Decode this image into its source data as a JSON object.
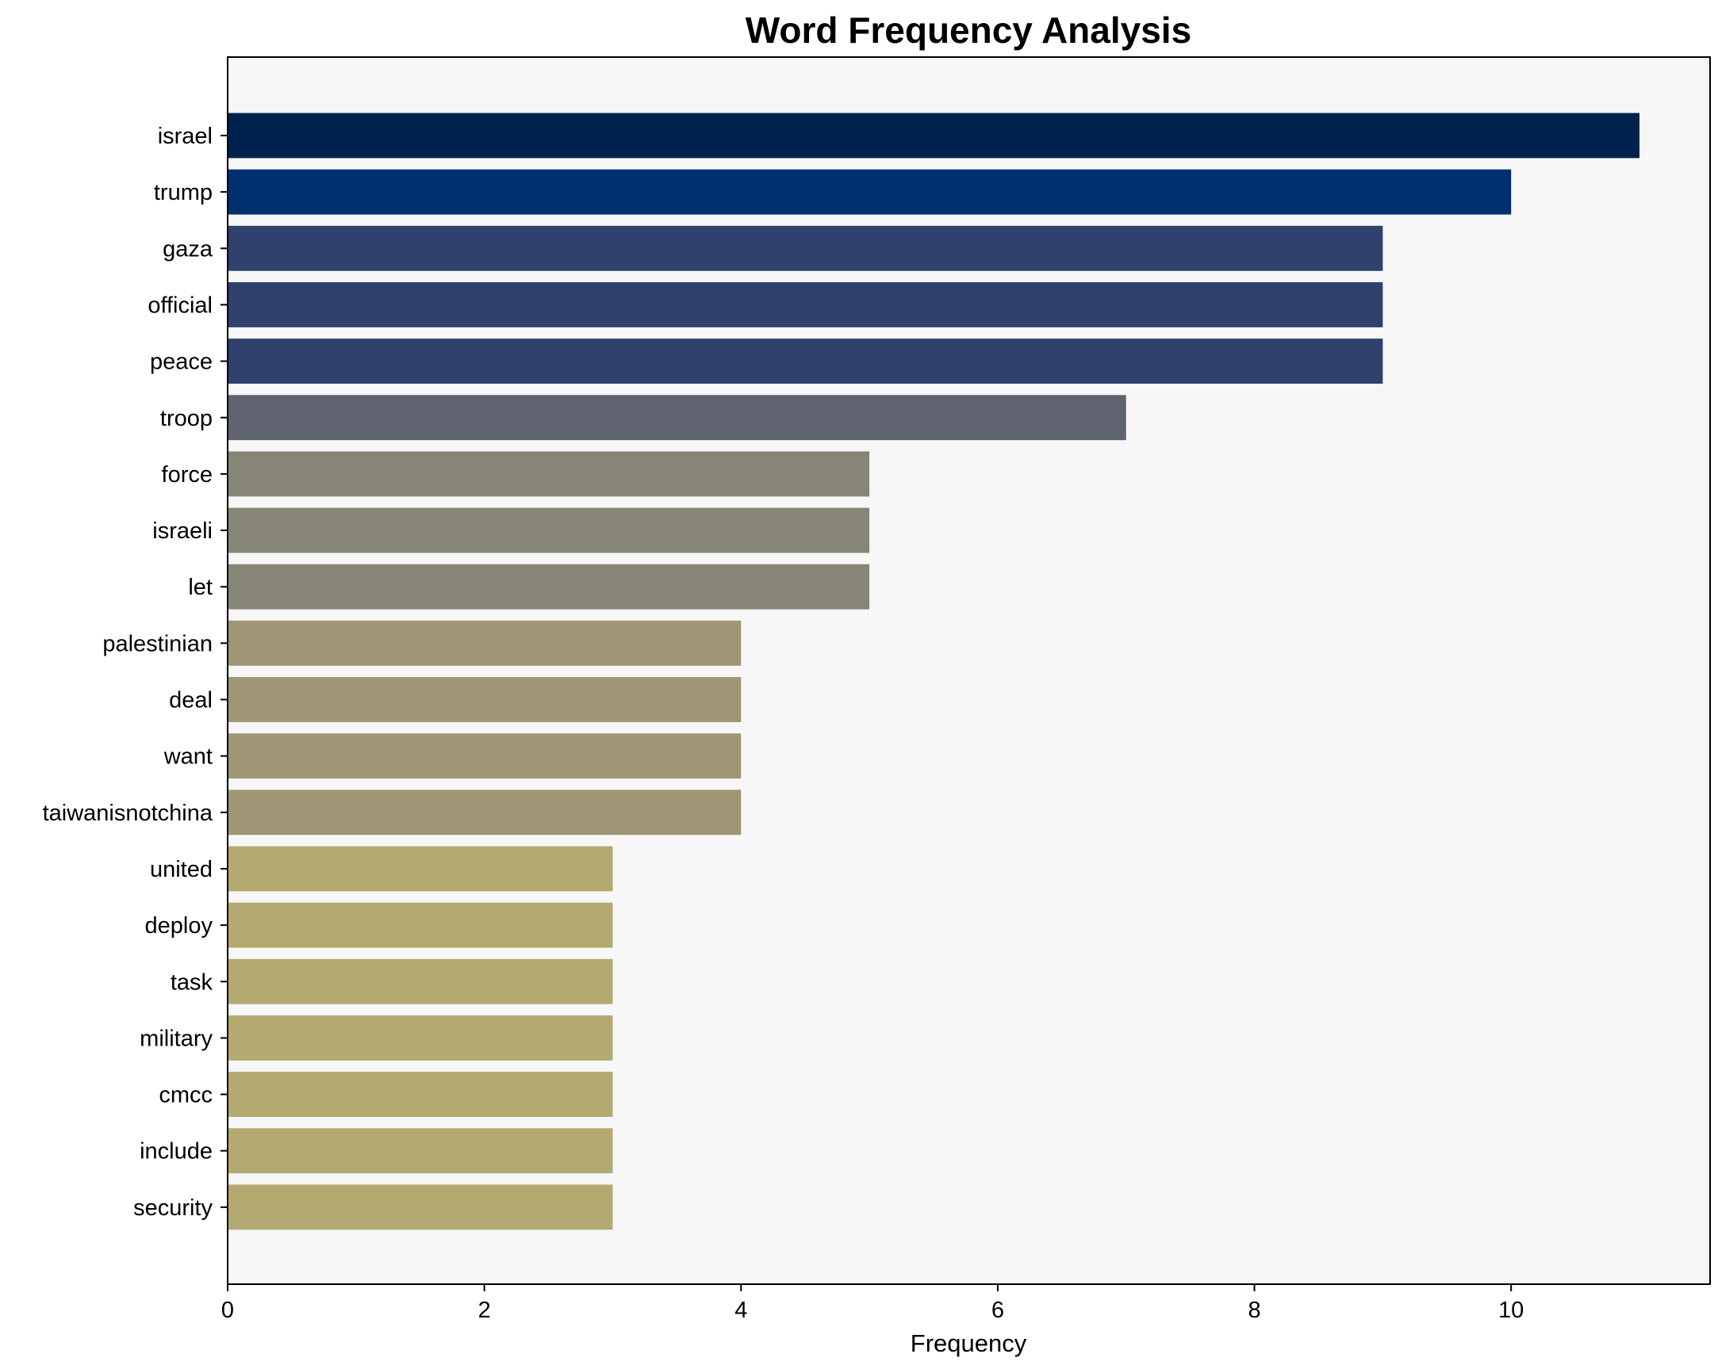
{
  "chart_data": {
    "type": "bar",
    "orientation": "horizontal",
    "title": "Word Frequency Analysis",
    "xlabel": "Frequency",
    "ylabel": "",
    "xlim": [
      0,
      11.55
    ],
    "xticks": [
      0,
      2,
      4,
      6,
      8,
      10
    ],
    "grid": false,
    "legend": "none",
    "background_color": "#f7f7f7",
    "categories": [
      "israel",
      "trump",
      "gaza",
      "official",
      "peace",
      "troop",
      "force",
      "israeli",
      "let",
      "palestinian",
      "deal",
      "want",
      "taiwanisnotchina",
      "united",
      "deploy",
      "task",
      "military",
      "cmcc",
      "include",
      "security"
    ],
    "values": [
      11,
      10,
      9,
      9,
      9,
      7,
      5,
      5,
      5,
      4,
      4,
      4,
      4,
      3,
      3,
      3,
      3,
      3,
      3,
      3
    ],
    "bar_colors": [
      "#00224e",
      "#003070",
      "#2f416c",
      "#2f416c",
      "#2f416c",
      "#5f636f",
      "#878576",
      "#878576",
      "#878576",
      "#9e9675",
      "#9e9675",
      "#9e9675",
      "#9e9675",
      "#b4a970",
      "#b4a970",
      "#b4a970",
      "#b4a970",
      "#b4a970",
      "#b4a970",
      "#b4a970"
    ]
  }
}
